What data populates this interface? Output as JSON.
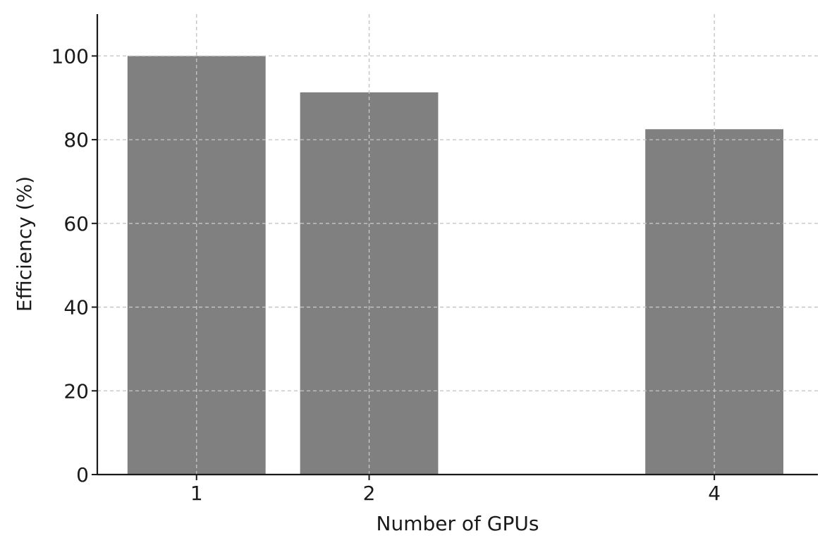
{
  "chart_data": {
    "type": "bar",
    "x": [
      1,
      2,
      4
    ],
    "values": [
      100,
      91.3,
      82.5
    ],
    "xlabel": "Number of GPUs",
    "ylabel": "Efficiency (%)",
    "xlim": [
      0.425,
      4.6
    ],
    "ylim": [
      0,
      110
    ],
    "bar_width": 0.8,
    "xticks": [
      1,
      2,
      4
    ],
    "yticks": [
      0,
      20,
      40,
      60,
      80,
      100
    ],
    "grid": true,
    "colors": {
      "bar": "#808080",
      "grid": "#c8c8c8",
      "axis": "#1a1a1a"
    }
  }
}
